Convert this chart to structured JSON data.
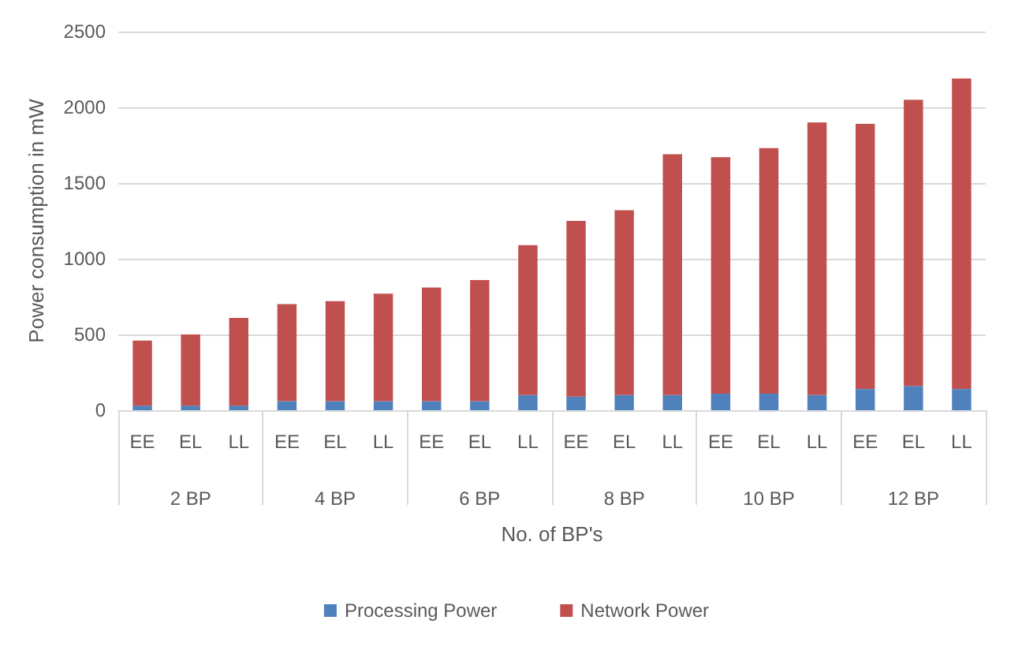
{
  "chart_data": {
    "type": "bar",
    "stacked": true,
    "xlabel": "No. of BP's",
    "ylabel": "Power consumption in mW",
    "categories": [
      "EE",
      "EL",
      "LL",
      "EE",
      "EL",
      "LL",
      "EE",
      "EL",
      "LL",
      "EE",
      "EL",
      "LL",
      "EE",
      "EL",
      "LL",
      "EE",
      "EL",
      "LL"
    ],
    "annotations": [
      "2 BP",
      "4 BP",
      "6 BP",
      "8 BP",
      "10 BP",
      "12 BP"
    ],
    "series": [
      {
        "name": "Processing Power",
        "color": "#4f81bd",
        "values": [
          30,
          30,
          30,
          60,
          60,
          60,
          60,
          60,
          100,
          90,
          100,
          100,
          110,
          110,
          100,
          140,
          160,
          140
        ]
      },
      {
        "name": "Network Power",
        "color": "#c0504d",
        "values": [
          430,
          470,
          580,
          640,
          660,
          710,
          750,
          800,
          990,
          1160,
          1220,
          1590,
          1560,
          1620,
          1800,
          1750,
          1890,
          2050
        ]
      }
    ],
    "ylim": [
      0,
      2500
    ],
    "yticks": [
      0,
      500,
      1000,
      1500,
      2000,
      2500
    ],
    "grid": "y",
    "legend": "bottom"
  }
}
